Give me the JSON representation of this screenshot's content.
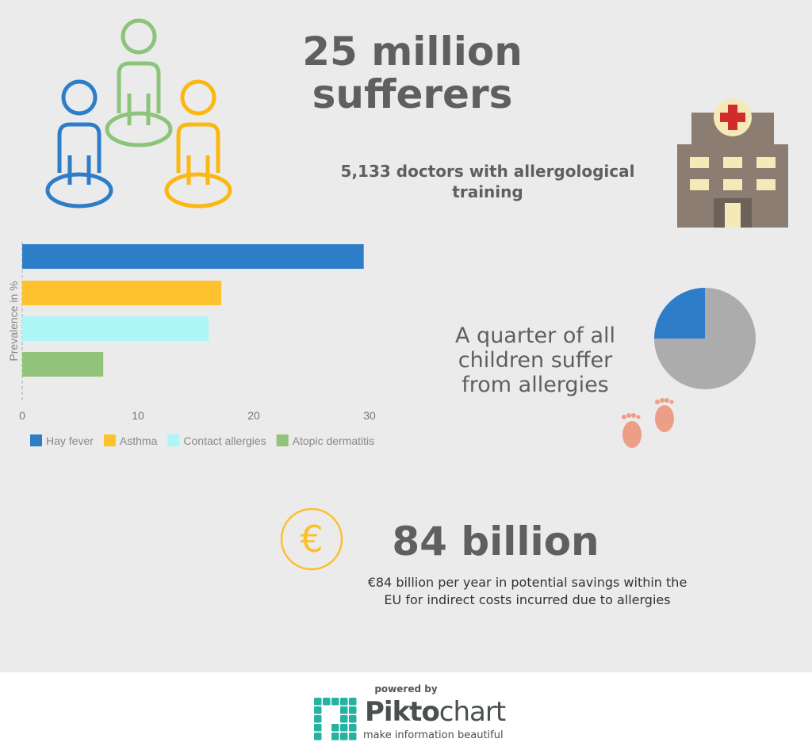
{
  "headline": {
    "line1": "25 million",
    "line2": "sufferers"
  },
  "doctors": {
    "line1": "5,133 doctors with allergological",
    "line2": "training"
  },
  "children": {
    "line1": "A quarter of all",
    "line2": "children suffer",
    "line3": "from allergies",
    "fraction": 0.25,
    "colors": {
      "share": "#2e7dc8",
      "rest": "#acacac"
    }
  },
  "savings": {
    "title": "84 billion",
    "line1": "€84 billion per year in potential savings within the",
    "line2": "EU for indirect costs incurred due to allergies",
    "icon": "euro-icon"
  },
  "footer": {
    "powered": "powered by",
    "brand_a": "Pikto",
    "brand_b": "chart",
    "tagline": "make information beautiful"
  },
  "chart_data": {
    "type": "bar",
    "orientation": "horizontal",
    "categories": [
      "Hay fever",
      "Asthma",
      "Contact allergies",
      "Atopic dermatitis"
    ],
    "values": [
      29.5,
      17.2,
      16.1,
      7.0
    ],
    "colors": [
      "#2e7dc8",
      "#fec22f",
      "#aef6f5",
      "#91c47a"
    ],
    "ylabel": "Prevalence in %",
    "xlim": [
      0,
      30
    ],
    "xticks": [
      "0",
      "10",
      "20",
      "30"
    ],
    "legend": "bottom"
  }
}
